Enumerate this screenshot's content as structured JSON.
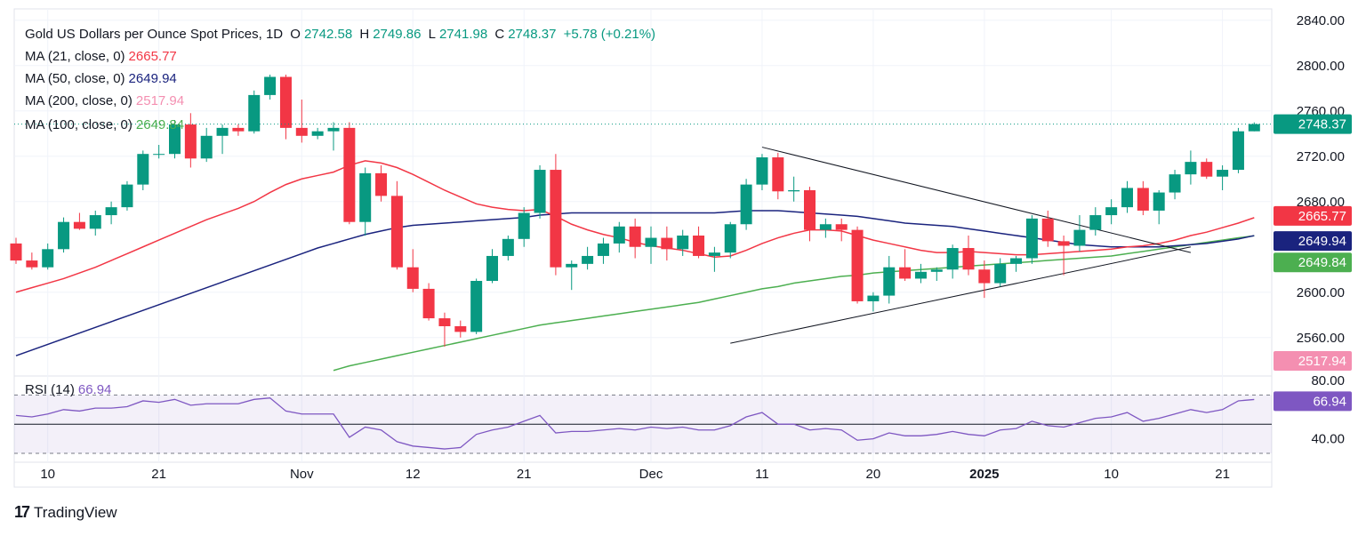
{
  "header": {
    "symbol": "Gold US Dollars per Ounce Spot Prices, 1D",
    "open_label": "O",
    "open": "2742.58",
    "high_label": "H",
    "high": "2749.86",
    "low_label": "L",
    "low": "2741.98",
    "close_label": "C",
    "close": "2748.37",
    "change": "+5.78 (+0.21%)"
  },
  "indicators": [
    {
      "label": "MA (21, close, 0)",
      "value": "2665.77",
      "color": "#f23645"
    },
    {
      "label": "MA (50, close, 0)",
      "value": "2649.94",
      "color": "#1a237e"
    },
    {
      "label": "MA (200, close, 0)",
      "value": "2517.94",
      "color": "#f48fb1"
    },
    {
      "label": "MA (100, close, 0)",
      "value": "2649.84",
      "color": "#4caf50"
    }
  ],
  "rsi": {
    "label": "RSI (14)",
    "value": "66.94",
    "color": "#7e57c2"
  },
  "brand": {
    "name": "TradingView",
    "logo": "17"
  },
  "colors": {
    "up": "#089981",
    "down": "#f23645",
    "grid": "#f0f3fa"
  },
  "chart_data": {
    "type": "candlestick",
    "price_axis": {
      "ticks": [
        "2840.00",
        "2800.00",
        "2760.00",
        "2720.00",
        "2680.00",
        "2600.00",
        "2560.00"
      ],
      "range": [
        2530,
        2850
      ]
    },
    "rsi_axis": {
      "ticks": [
        "80.00",
        "40.00"
      ],
      "range": [
        30,
        80
      ],
      "levels": [
        30,
        50,
        70
      ]
    },
    "x_ticks": [
      {
        "label": "10",
        "i": 2
      },
      {
        "label": "21",
        "i": 9
      },
      {
        "label": "Nov",
        "i": 18
      },
      {
        "label": "12",
        "i": 25
      },
      {
        "label": "21",
        "i": 32
      },
      {
        "label": "Dec",
        "i": 40
      },
      {
        "label": "11",
        "i": 47
      },
      {
        "label": "20",
        "i": 54
      },
      {
        "label": "2025",
        "i": 61,
        "bold": true
      },
      {
        "label": "10",
        "i": 69
      },
      {
        "label": "21",
        "i": 76
      }
    ],
    "badges": [
      {
        "value": "2748.37",
        "color": "#089981"
      },
      {
        "value": "2665.77",
        "color": "#f23645"
      },
      {
        "value": "2649.94",
        "color": "#1a237e"
      },
      {
        "value": "2649.84",
        "color": "#4caf50"
      },
      {
        "value": "2517.94",
        "color": "#f48fb1"
      },
      {
        "value": "66.94",
        "color": "#7e57c2"
      }
    ],
    "candles": [
      [
        2643,
        2648,
        2625,
        2628
      ],
      [
        2628,
        2635,
        2620,
        2622
      ],
      [
        2622,
        2643,
        2620,
        2638
      ],
      [
        2638,
        2666,
        2635,
        2662
      ],
      [
        2662,
        2670,
        2655,
        2656
      ],
      [
        2656,
        2672,
        2650,
        2668
      ],
      [
        2668,
        2680,
        2660,
        2675
      ],
      [
        2675,
        2698,
        2672,
        2695
      ],
      [
        2695,
        2725,
        2690,
        2722
      ],
      [
        2722,
        2730,
        2718,
        2722
      ],
      [
        2722,
        2752,
        2718,
        2748
      ],
      [
        2748,
        2758,
        2710,
        2718
      ],
      [
        2718,
        2745,
        2715,
        2738
      ],
      [
        2738,
        2748,
        2722,
        2745
      ],
      [
        2745,
        2748,
        2738,
        2742
      ],
      [
        2742,
        2778,
        2740,
        2774
      ],
      [
        2774,
        2792,
        2770,
        2790
      ],
      [
        2790,
        2792,
        2735,
        2745
      ],
      [
        2745,
        2770,
        2732,
        2738
      ],
      [
        2738,
        2745,
        2735,
        2742
      ],
      [
        2742,
        2750,
        2725,
        2745
      ],
      [
        2745,
        2750,
        2660,
        2662
      ],
      [
        2662,
        2710,
        2650,
        2705
      ],
      [
        2705,
        2712,
        2680,
        2685
      ],
      [
        2685,
        2698,
        2620,
        2622
      ],
      [
        2622,
        2638,
        2600,
        2603
      ],
      [
        2603,
        2608,
        2575,
        2577
      ],
      [
        2577,
        2582,
        2552,
        2570
      ],
      [
        2570,
        2575,
        2560,
        2565
      ],
      [
        2565,
        2612,
        2563,
        2610
      ],
      [
        2610,
        2638,
        2608,
        2632
      ],
      [
        2632,
        2650,
        2628,
        2647
      ],
      [
        2647,
        2675,
        2640,
        2670
      ],
      [
        2670,
        2712,
        2665,
        2708
      ],
      [
        2708,
        2722,
        2615,
        2622
      ],
      [
        2622,
        2628,
        2602,
        2625
      ],
      [
        2625,
        2640,
        2620,
        2632
      ],
      [
        2632,
        2648,
        2625,
        2643
      ],
      [
        2643,
        2662,
        2635,
        2658
      ],
      [
        2658,
        2665,
        2630,
        2640
      ],
      [
        2640,
        2658,
        2625,
        2648
      ],
      [
        2648,
        2658,
        2628,
        2638
      ],
      [
        2638,
        2655,
        2632,
        2650
      ],
      [
        2650,
        2658,
        2630,
        2632
      ],
      [
        2632,
        2640,
        2618,
        2635
      ],
      [
        2635,
        2662,
        2630,
        2660
      ],
      [
        2660,
        2700,
        2655,
        2695
      ],
      [
        2695,
        2722,
        2690,
        2719
      ],
      [
        2719,
        2723,
        2682,
        2689
      ],
      [
        2689,
        2702,
        2680,
        2690
      ],
      [
        2690,
        2693,
        2645,
        2655
      ],
      [
        2655,
        2665,
        2648,
        2660
      ],
      [
        2660,
        2665,
        2645,
        2655
      ],
      [
        2655,
        2658,
        2590,
        2592
      ],
      [
        2592,
        2600,
        2583,
        2597
      ],
      [
        2597,
        2632,
        2590,
        2622
      ],
      [
        2622,
        2638,
        2610,
        2612
      ],
      [
        2612,
        2625,
        2608,
        2618
      ],
      [
        2618,
        2622,
        2610,
        2620
      ],
      [
        2620,
        2642,
        2612,
        2639
      ],
      [
        2639,
        2650,
        2615,
        2620
      ],
      [
        2620,
        2628,
        2595,
        2608
      ],
      [
        2608,
        2630,
        2605,
        2625
      ],
      [
        2625,
        2632,
        2618,
        2630
      ],
      [
        2630,
        2668,
        2625,
        2665
      ],
      [
        2665,
        2672,
        2640,
        2645
      ],
      [
        2645,
        2650,
        2615,
        2641
      ],
      [
        2641,
        2668,
        2636,
        2655
      ],
      [
        2655,
        2675,
        2650,
        2668
      ],
      [
        2668,
        2682,
        2660,
        2675
      ],
      [
        2675,
        2698,
        2670,
        2692
      ],
      [
        2692,
        2698,
        2668,
        2672
      ],
      [
        2672,
        2690,
        2660,
        2688
      ],
      [
        2688,
        2708,
        2682,
        2704
      ],
      [
        2704,
        2725,
        2695,
        2715
      ],
      [
        2715,
        2718,
        2700,
        2702
      ],
      [
        2702,
        2712,
        2690,
        2708
      ],
      [
        2708,
        2745,
        2705,
        2742
      ],
      [
        2742,
        2749.86,
        2741.98,
        2748.37
      ]
    ],
    "ma21": [
      2600,
      2604,
      2608,
      2612,
      2617,
      2622,
      2628,
      2634,
      2640,
      2646,
      2652,
      2658,
      2664,
      2669,
      2674,
      2680,
      2688,
      2695,
      2700,
      2703,
      2706,
      2712,
      2716,
      2714,
      2710,
      2704,
      2697,
      2690,
      2684,
      2678,
      2675,
      2673,
      2672,
      2673,
      2667,
      2660,
      2655,
      2651,
      2648,
      2644,
      2641,
      2639,
      2637,
      2634,
      2631,
      2632,
      2637,
      2643,
      2648,
      2652,
      2655,
      2655,
      2654,
      2650,
      2646,
      2643,
      2640,
      2637,
      2635,
      2635,
      2636,
      2635,
      2634,
      2633,
      2633,
      2634,
      2635,
      2636,
      2637,
      2638,
      2640,
      2641,
      2643,
      2646,
      2650,
      2653,
      2657,
      2661,
      2665.77
    ],
    "ma50": [
      2544,
      2549,
      2554,
      2559,
      2564,
      2569,
      2574,
      2579,
      2584,
      2589,
      2594,
      2599,
      2604,
      2609,
      2614,
      2619,
      2624,
      2629,
      2634,
      2639,
      2643,
      2647,
      2651,
      2654,
      2657,
      2659,
      2660,
      2661,
      2662,
      2663,
      2664,
      2665,
      2666,
      2668,
      2669,
      2670,
      2670,
      2670,
      2670,
      2670,
      2670,
      2670,
      2670,
      2670,
      2670,
      2671,
      2672,
      2672,
      2672,
      2671,
      2670,
      2669,
      2668,
      2667,
      2665,
      2663,
      2661,
      2660,
      2659,
      2658,
      2656,
      2654,
      2652,
      2650,
      2648,
      2646,
      2644,
      2642,
      2641,
      2640,
      2640,
      2640,
      2640,
      2641,
      2642,
      2643,
      2645,
      2647,
      2649.94
    ],
    "ma100": [
      null,
      null,
      null,
      null,
      null,
      null,
      null,
      null,
      null,
      null,
      null,
      null,
      null,
      null,
      null,
      null,
      null,
      null,
      null,
      null,
      2531,
      2535,
      2538,
      2541,
      2544,
      2547,
      2550,
      2553,
      2556,
      2559,
      2562,
      2565,
      2568,
      2571,
      2573,
      2575,
      2577,
      2579,
      2581,
      2583,
      2585,
      2587,
      2589,
      2591,
      2594,
      2597,
      2600,
      2603,
      2605,
      2608,
      2610,
      2612,
      2614,
      2615,
      2617,
      2618,
      2619,
      2620,
      2621,
      2622,
      2623,
      2624,
      2625,
      2626,
      2627,
      2628,
      2629,
      2630,
      2631,
      2632,
      2634,
      2636,
      2638,
      2640,
      2642,
      2644,
      2646,
      2648,
      2649.84
    ],
    "rsi": [
      56,
      55,
      57,
      60,
      59,
      61,
      61,
      62,
      66,
      65,
      67,
      63,
      64,
      64,
      64,
      67,
      68,
      59,
      57,
      57,
      57,
      41,
      48,
      46,
      38,
      35,
      34,
      33,
      34,
      43,
      46,
      48,
      52,
      56,
      44,
      45,
      45,
      46,
      47,
      46,
      48,
      47,
      48,
      46,
      46,
      49,
      55,
      58,
      50,
      50,
      46,
      47,
      46,
      39,
      40,
      44,
      42,
      42,
      43,
      45,
      43,
      42,
      46,
      47,
      52,
      49,
      48,
      51,
      54,
      55,
      58,
      52,
      54,
      57,
      60,
      58,
      60,
      66,
      66.94
    ],
    "triangle_upper": [
      [
        47,
        2728
      ],
      [
        74,
        2635
      ]
    ],
    "triangle_lower": [
      [
        45,
        2555
      ],
      [
        74,
        2640
      ]
    ]
  }
}
